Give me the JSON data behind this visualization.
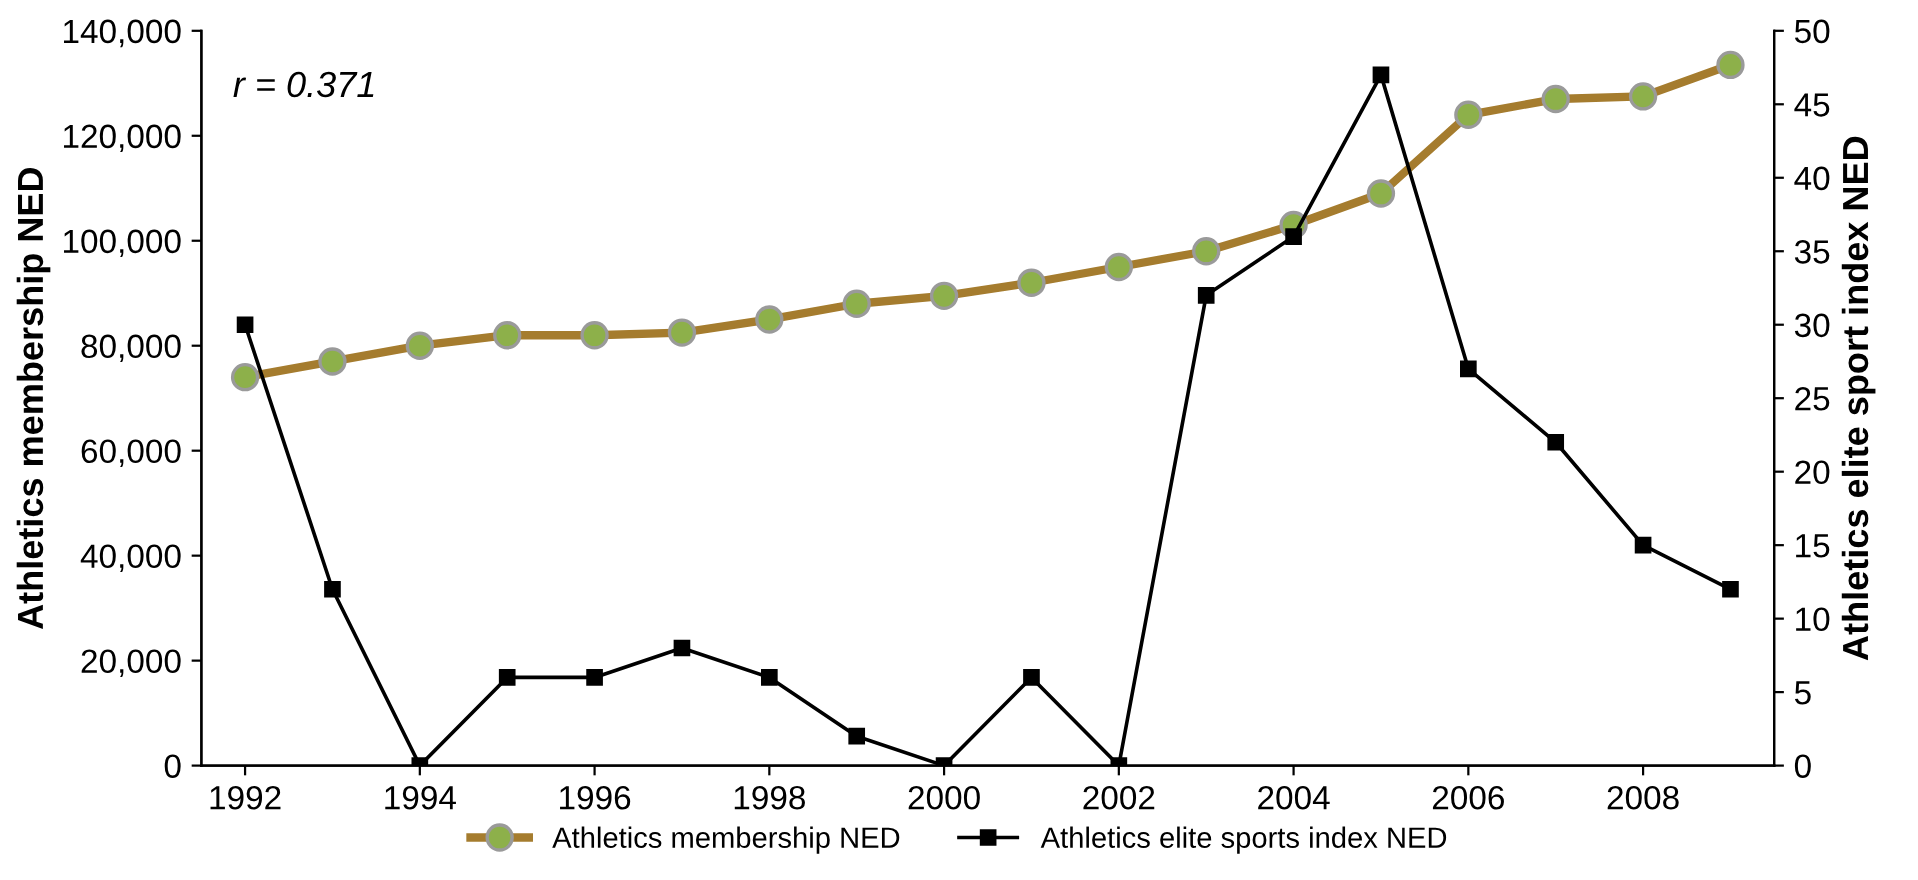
{
  "chart_data": {
    "type": "line",
    "ylabel": "Athletics membership NED",
    "y2label": "Athletics elite sport index NED",
    "x": [
      1992,
      1993,
      1994,
      1995,
      1996,
      1997,
      1998,
      1999,
      2000,
      2001,
      2002,
      2003,
      2004,
      2005,
      2006,
      2007,
      2008,
      2009
    ],
    "xlim": [
      1991.5,
      2009.5
    ],
    "xticks": [
      1992,
      1994,
      1996,
      1998,
      2000,
      2002,
      2004,
      2006,
      2008
    ],
    "ylim": [
      0,
      140000
    ],
    "yticks": [
      {
        "value": 0,
        "label": "0"
      },
      {
        "value": 20000,
        "label": "20,000"
      },
      {
        "value": 40000,
        "label": "40,000"
      },
      {
        "value": 60000,
        "label": "60,000"
      },
      {
        "value": 80000,
        "label": "80,000"
      },
      {
        "value": 100000,
        "label": "100,000"
      },
      {
        "value": 120000,
        "label": "120,000"
      },
      {
        "value": 140000,
        "label": "140,000"
      }
    ],
    "y2lim": [
      0,
      50
    ],
    "y2ticks": [
      0,
      5,
      10,
      15,
      20,
      25,
      30,
      35,
      40,
      45,
      50
    ],
    "series": [
      {
        "name": "Athletics membership NED",
        "color": "#a57c2e",
        "marker": "circle",
        "values": [
          74000,
          77000,
          80000,
          82000,
          82000,
          82500,
          85000,
          88000,
          89500,
          92000,
          95000,
          98000,
          103000,
          109000,
          124000,
          127000,
          127500,
          133500
        ]
      },
      {
        "name": "Athletics elite sports index NED",
        "color": "#000000",
        "marker": "square",
        "axis": "y2",
        "values": [
          30,
          12,
          0,
          6,
          6,
          8,
          6,
          2,
          0,
          6,
          0,
          32,
          36,
          47,
          27,
          22,
          15,
          12
        ]
      }
    ],
    "annotations": [
      "r = 0.371"
    ],
    "legend": "bottom",
    "grid": false
  }
}
